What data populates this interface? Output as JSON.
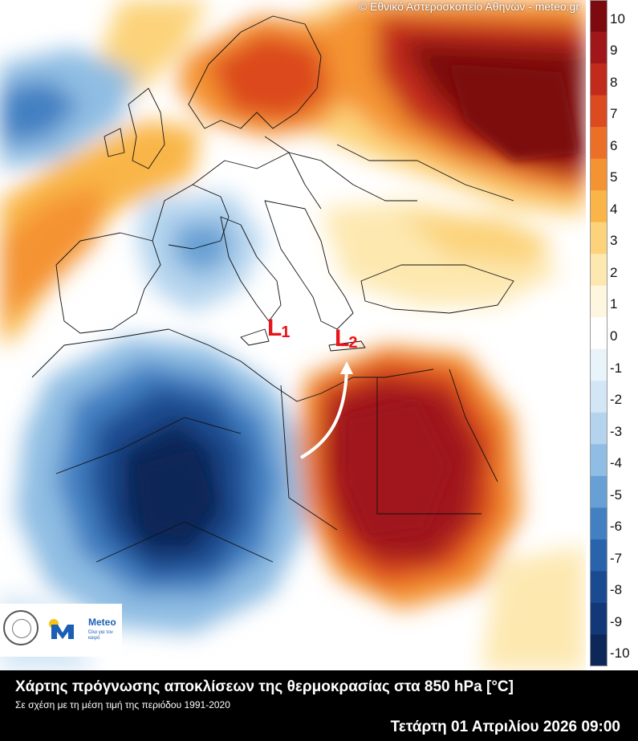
{
  "credit": "© Εθνικό Αστεροσκοπείο Αθηνών - meteo.gr",
  "labels": {
    "l1_letter": "L",
    "l1_index": "1",
    "l2_letter": "L",
    "l2_index": "2"
  },
  "legend": {
    "unit": "°C",
    "ticks": [
      "10",
      "9",
      "8",
      "7",
      "6",
      "5",
      "4",
      "3",
      "2",
      "1",
      "0",
      "-1",
      "-2",
      "-3",
      "-4",
      "-5",
      "-6",
      "-7",
      "-8",
      "-9",
      "-10"
    ],
    "colors": [
      "#7d0a0e",
      "#a0171a",
      "#c22b1c",
      "#dc4a1f",
      "#ec6f28",
      "#f49332",
      "#f9b547",
      "#fcd37a",
      "#fde8b0",
      "#fff6df",
      "#ffffff",
      "#e9f3fa",
      "#d3e6f5",
      "#b4d4ee",
      "#8fbde3",
      "#67a0d4",
      "#4380c2",
      "#2963ab",
      "#1a4b91",
      "#123877",
      "#0c2758"
    ]
  },
  "logos": {
    "seal_icon": "observatory-seal-icon",
    "meteo_icon": "meteo-m-logo-icon",
    "meteo_name": "Meteo",
    "meteo_tagline": "Όλα για τον καιρό"
  },
  "footer": {
    "title": "Χάρτης πρόγνωσης αποκλίσεων της θερμοκρασίας στα 850 hPa [°C]",
    "subtitle": "Σε σχέση με τη μέση τιμή της περιόδου 1991-2020",
    "datetime": "Τετάρτη 01 Απριλίου 2026 09:00"
  }
}
